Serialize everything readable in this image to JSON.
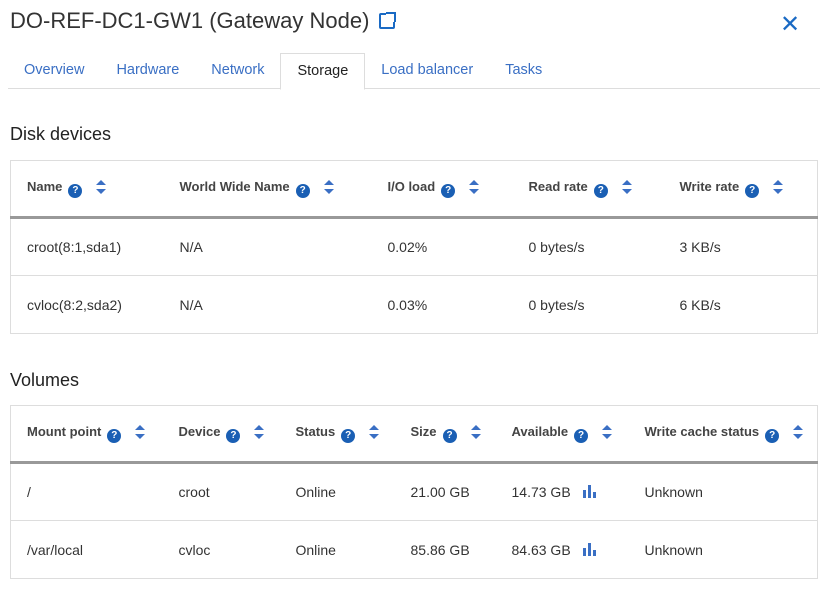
{
  "header": {
    "title": "DO-REF-DC1-GW1 (Gateway Node)",
    "external_link_icon": "external-link-icon",
    "close_icon": "close-icon"
  },
  "tabs": [
    "Overview",
    "Hardware",
    "Network",
    "Storage",
    "Load balancer",
    "Tasks"
  ],
  "active_tab": "Storage",
  "disk": {
    "title": "Disk devices",
    "columns": [
      "Name",
      "World Wide Name",
      "I/O load",
      "Read rate",
      "Write rate"
    ],
    "rows": [
      [
        "croot(8:1,sda1)",
        "N/A",
        "0.02%",
        "0 bytes/s",
        "3 KB/s"
      ],
      [
        "cvloc(8:2,sda2)",
        "N/A",
        "0.03%",
        "0 bytes/s",
        "6 KB/s"
      ]
    ]
  },
  "volumes": {
    "title": "Volumes",
    "columns": [
      "Mount point",
      "Device",
      "Status",
      "Size",
      "Available",
      "Write cache status"
    ],
    "rows": [
      [
        "/",
        "croot",
        "Online",
        "21.00 GB",
        "14.73 GB",
        "Unknown"
      ],
      [
        "/var/local",
        "cvloc",
        "Online",
        "85.86 GB",
        "84.63 GB",
        "Unknown"
      ]
    ]
  },
  "colors": {
    "accent": "#1a6ac4",
    "help_icon": "#1a5fb4"
  }
}
